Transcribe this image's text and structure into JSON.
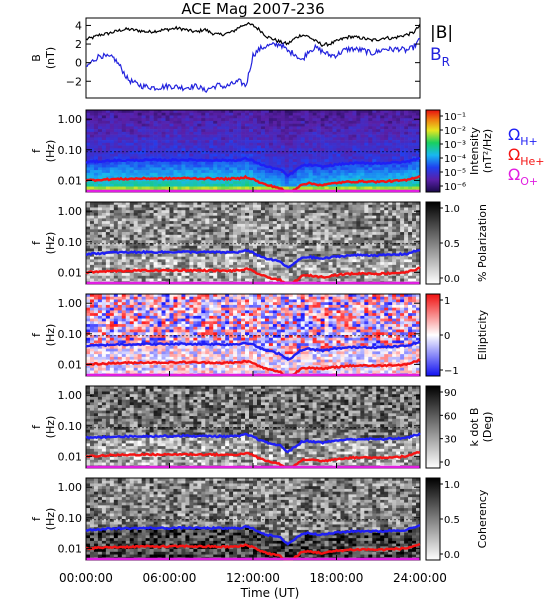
{
  "title": "ACE Mag 2007-236",
  "colors": {
    "h_plus": "#1f1ff5",
    "he_plus": "#f51414",
    "o_plus": "#e11ee1",
    "b_total": "#000000",
    "b_radial": "#2222dd"
  },
  "legend": {
    "b_total": "|B|",
    "b_radial_main": "B",
    "b_radial_sub": "R",
    "omega": "Ω",
    "h_plus_sub": "H+",
    "he_plus_sub": "He+",
    "o_plus_sub": "O+"
  },
  "x_axis": {
    "label": "Time (UT)",
    "ticks": [
      "00:00:00",
      "06:00:00",
      "12:00:00",
      "18:00:00",
      "24:00:00"
    ],
    "range_hours": [
      0,
      24
    ]
  },
  "chart_data": [
    {
      "type": "line",
      "panel": "magnetic_field",
      "ylabel_main": "B",
      "ylabel_sub": "(nT)",
      "yticks": [
        "4",
        "2",
        "0",
        "−2"
      ],
      "ylim": [
        -3.8,
        4.8
      ],
      "series": [
        {
          "name": "|B|",
          "x": [
            0,
            0.5,
            1,
            1.5,
            2,
            2.5,
            3,
            3.5,
            4,
            4.5,
            5,
            5.5,
            6,
            6.5,
            7,
            7.5,
            8,
            8.5,
            9,
            9.5,
            10,
            10.5,
            11,
            11.5,
            12,
            12.5,
            13,
            13.5,
            14,
            14.5,
            15,
            15.5,
            16,
            16.5,
            17,
            17.5,
            18,
            18.5,
            19,
            19.5,
            20,
            20.5,
            21,
            21.5,
            22,
            22.5,
            23,
            23.5,
            24
          ],
          "values": [
            2.5,
            2.7,
            3.0,
            3.1,
            3.3,
            3.5,
            3.6,
            3.5,
            3.4,
            3.3,
            3.4,
            3.5,
            3.6,
            3.7,
            3.6,
            3.4,
            3.3,
            3.6,
            3.2,
            3.0,
            3.1,
            3.3,
            3.8,
            4.2,
            4.0,
            3.5,
            2.8,
            2.5,
            2.2,
            2.0,
            2.6,
            3.0,
            2.8,
            2.3,
            1.9,
            2.0,
            2.3,
            2.6,
            2.8,
            2.7,
            2.6,
            2.4,
            2.5,
            2.7,
            2.6,
            2.8,
            3.0,
            3.2,
            4.0
          ]
        },
        {
          "name": "B_R",
          "x": [
            0,
            0.5,
            1,
            1.5,
            2,
            2.5,
            3,
            3.5,
            4,
            4.5,
            5,
            5.5,
            6,
            6.5,
            7,
            7.5,
            8,
            8.5,
            9,
            9.5,
            10,
            10.5,
            11,
            11.5,
            12,
            12.5,
            13,
            13.5,
            14,
            14.5,
            15,
            15.5,
            16,
            16.5,
            17,
            17.5,
            18,
            18.5,
            19,
            19.5,
            20,
            20.5,
            21,
            21.5,
            22,
            22.5,
            23,
            23.5,
            24
          ],
          "values": [
            -0.5,
            0.2,
            0.8,
            0.6,
            0.5,
            -0.5,
            -1.8,
            -2.2,
            -2.5,
            -2.6,
            -2.7,
            -2.6,
            -2.5,
            -2.6,
            -2.7,
            -2.6,
            -2.5,
            -3.0,
            -2.7,
            -2.4,
            -2.6,
            -2.3,
            -2.0,
            -2.5,
            0.8,
            1.5,
            1.8,
            1.9,
            2.0,
            1.2,
            1.0,
            0.2,
            1.3,
            1.6,
            1.2,
            0.8,
            0.8,
            1.3,
            1.5,
            1.4,
            1.3,
            1.0,
            1.2,
            1.5,
            1.4,
            1.5,
            1.3,
            1.6,
            2.5
          ]
        }
      ]
    },
    {
      "type": "heatmap",
      "panel": "intensity",
      "ylabel_main": "f",
      "ylabel_sub": "(Hz)",
      "yticks": [
        "1.00",
        "0.10",
        "0.01"
      ],
      "colorbar_title": "Intensity",
      "colorbar_units": "(nT²/Hz)",
      "colorbar_ticks": [
        "10⁻¹",
        "10⁻²",
        "10⁻³",
        "10⁻⁴",
        "10⁻⁵",
        "10⁻⁶"
      ]
    },
    {
      "type": "heatmap",
      "panel": "polarization",
      "ylabel_main": "f",
      "ylabel_sub": "(Hz)",
      "yticks": [
        "1.00",
        "0.10",
        "0.01"
      ],
      "colorbar_title": "% Polarization",
      "colorbar_ticks": [
        "1.0",
        "0.5",
        "0.0"
      ]
    },
    {
      "type": "heatmap",
      "panel": "ellipticity",
      "ylabel_main": "f",
      "ylabel_sub": "(Hz)",
      "yticks": [
        "1.00",
        "0.10",
        "0.01"
      ],
      "colorbar_title": "Ellipticity",
      "colorbar_ticks": [
        "1",
        "0",
        "−1"
      ]
    },
    {
      "type": "heatmap",
      "panel": "k_dot_b",
      "ylabel_main": "f",
      "ylabel_sub": "(Hz)",
      "yticks": [
        "1.00",
        "0.10",
        "0.01"
      ],
      "colorbar_title": "k dot B",
      "colorbar_units": "(Deg)",
      "colorbar_ticks": [
        "90",
        "60",
        "30",
        "0"
      ]
    },
    {
      "type": "heatmap",
      "panel": "coherency",
      "ylabel_main": "f",
      "ylabel_sub": "(Hz)",
      "yticks": [
        "1.00",
        "0.10",
        "0.01"
      ],
      "colorbar_title": "Coherency",
      "colorbar_ticks": [
        "1.0",
        "0.5",
        "0.0"
      ]
    }
  ],
  "gyrofrequency_lines": {
    "x": [
      0,
      1,
      2,
      3,
      4,
      5,
      6,
      7,
      8,
      9,
      10,
      11,
      11.5,
      12,
      12.5,
      13,
      13.5,
      14,
      14.5,
      15,
      15.5,
      16,
      17,
      18,
      19,
      20,
      21,
      22,
      23,
      24
    ],
    "h_plus": [
      0.04,
      0.042,
      0.045,
      0.045,
      0.046,
      0.046,
      0.046,
      0.047,
      0.046,
      0.046,
      0.045,
      0.046,
      0.052,
      0.044,
      0.034,
      0.028,
      0.025,
      0.022,
      0.014,
      0.02,
      0.03,
      0.032,
      0.028,
      0.033,
      0.036,
      0.037,
      0.036,
      0.038,
      0.04,
      0.055
    ],
    "he_plus": [
      0.01,
      0.0105,
      0.011,
      0.0112,
      0.0115,
      0.0115,
      0.0115,
      0.0118,
      0.0115,
      0.0115,
      0.0112,
      0.0115,
      0.013,
      0.011,
      0.0085,
      0.007,
      0.0063,
      0.0055,
      0.0035,
      0.005,
      0.0075,
      0.008,
      0.007,
      0.0083,
      0.009,
      0.0093,
      0.009,
      0.0095,
      0.01,
      0.0138
    ],
    "o_plus": [
      0.0025,
      0.0026,
      0.0028,
      0.0028,
      0.0029,
      0.0029,
      0.0029,
      0.0029,
      0.0029,
      0.0029,
      0.0028,
      0.0029,
      0.0033,
      0.0027,
      0.0021,
      0.0017,
      0.0016,
      0.0014,
      0.0009,
      0.0012,
      0.0019,
      0.002,
      0.0017,
      0.0021,
      0.0022,
      0.0023,
      0.0022,
      0.0024,
      0.0025,
      0.0034
    ]
  },
  "reference_line_freq_hz": 0.086
}
